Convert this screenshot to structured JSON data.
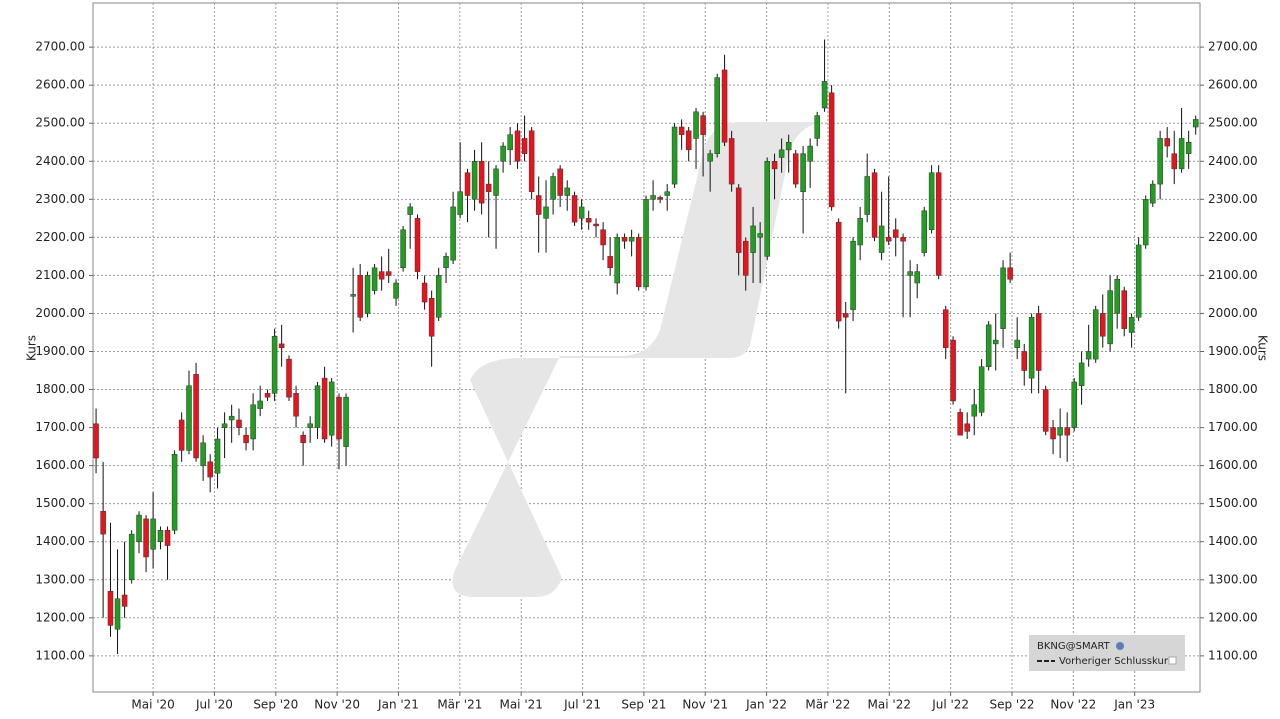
{
  "chart_data": {
    "type": "candlestick",
    "ylabel": "Kurs",
    "y2label": "Kurs",
    "legend": [
      "BKNG@SMART",
      "Vorheriger Schlusskurs"
    ],
    "up_color": "#1f9e1f",
    "down_color": "#e8131d",
    "grid": true,
    "xlim": [
      2.04,
      38.13
    ],
    "xticks": [
      {
        "value": 4,
        "label": "Mai '20"
      },
      {
        "value": 6,
        "label": "Jul '20"
      },
      {
        "value": 8,
        "label": "Sep '20"
      },
      {
        "value": 10,
        "label": "Nov '20"
      },
      {
        "value": 12,
        "label": "Jan '21"
      },
      {
        "value": 14,
        "label": "Mär '21"
      },
      {
        "value": 16,
        "label": "Mai '21"
      },
      {
        "value": 18,
        "label": "Jul '21"
      },
      {
        "value": 20,
        "label": "Sep '21"
      },
      {
        "value": 22,
        "label": "Nov '21"
      },
      {
        "value": 24,
        "label": "Jan '22"
      },
      {
        "value": 26,
        "label": "Mär '22"
      },
      {
        "value": 28,
        "label": "Mai '22"
      },
      {
        "value": 30,
        "label": "Jul '22"
      },
      {
        "value": 32,
        "label": "Sep '22"
      },
      {
        "value": 34,
        "label": "Nov '22"
      },
      {
        "value": 36,
        "label": "Jan '23"
      }
    ],
    "ylim": [
      1005,
      2816
    ],
    "yticks": [
      {
        "value": 1100,
        "label": "1100.00"
      },
      {
        "value": 1200,
        "label": "1200.00"
      },
      {
        "value": 1300,
        "label": "1300.00"
      },
      {
        "value": 1400,
        "label": "1400.00"
      },
      {
        "value": 1500,
        "label": "1500.00"
      },
      {
        "value": 1600,
        "label": "1600.00"
      },
      {
        "value": 1700,
        "label": "1700.00"
      },
      {
        "value": 1800,
        "label": "1800.00"
      },
      {
        "value": 1900,
        "label": "1900.00"
      },
      {
        "value": 2000,
        "label": "2000.00"
      },
      {
        "value": 2100,
        "label": "2100.00"
      },
      {
        "value": 2200,
        "label": "2200.00"
      },
      {
        "value": 2300,
        "label": "2300.00"
      },
      {
        "value": 2400,
        "label": "2400.00"
      },
      {
        "value": 2500,
        "label": "2500.00"
      },
      {
        "value": 2600,
        "label": "2600.00"
      },
      {
        "value": 2700,
        "label": "2700.00"
      }
    ],
    "x": [
      2.14,
      2.37,
      2.61,
      2.84,
      3.07,
      3.3,
      3.54,
      3.77,
      4.0,
      4.24,
      4.47,
      4.7,
      4.93,
      5.17,
      5.4,
      5.63,
      5.86,
      6.1,
      6.33,
      6.56,
      6.8,
      7.03,
      7.26,
      7.49,
      7.73,
      7.96,
      8.19,
      8.43,
      8.66,
      8.89,
      9.12,
      9.36,
      9.59,
      9.82,
      10.06,
      10.29,
      10.52,
      10.75,
      10.99,
      11.22,
      11.45,
      11.68,
      11.92,
      12.15,
      12.38,
      12.62,
      12.85,
      13.08,
      13.31,
      13.55,
      13.78,
      14.01,
      14.25,
      14.48,
      14.71,
      14.94,
      15.18,
      15.41,
      15.64,
      15.88,
      16.11,
      16.34,
      16.57,
      16.81,
      17.04,
      17.27,
      17.5,
      17.74,
      17.97,
      18.2,
      18.44,
      18.67,
      18.9,
      19.13,
      19.37,
      19.6,
      19.83,
      20.07,
      20.3,
      20.53,
      20.76,
      21.0,
      21.23,
      21.46,
      21.7,
      21.93,
      22.16,
      22.39,
      22.63,
      22.86,
      23.09,
      23.32,
      23.56,
      23.79,
      24.02,
      24.26,
      24.49,
      24.72,
      24.95,
      25.19,
      25.42,
      25.65,
      25.89,
      26.12,
      26.35,
      26.58,
      26.82,
      27.05,
      27.28,
      27.52,
      27.75,
      27.98,
      28.21,
      28.45,
      28.68,
      28.91,
      29.14,
      29.38,
      29.61,
      29.84,
      30.08,
      30.31,
      30.54,
      30.77,
      31.01,
      31.24,
      31.47,
      31.71,
      31.94,
      32.17,
      32.4,
      32.64,
      32.87,
      33.1,
      33.34,
      33.57,
      33.8,
      34.03,
      34.27,
      34.5,
      34.73,
      34.96,
      35.2,
      35.43,
      35.66,
      35.9,
      36.13,
      36.36,
      36.59,
      36.83,
      37.06,
      37.29,
      37.53,
      37.76,
      37.99
    ],
    "open": [
      1710,
      1480,
      1270,
      1170,
      1260,
      1300,
      1400,
      1460,
      1380,
      1400,
      1430,
      1430,
      1720,
      1640,
      1840,
      1600,
      1610,
      1580,
      1700,
      1720,
      1720,
      1680,
      1670,
      1750,
      1790,
      1790,
      1920,
      1880,
      1790,
      1680,
      1700,
      1700,
      1830,
      1680,
      1780,
      1650,
      2045,
      2100,
      2000,
      2060,
      2110,
      2110,
      2040,
      2120,
      2260,
      2250,
      2080,
      2040,
      1990,
      2120,
      2140,
      2260,
      2370,
      2300,
      2400,
      2340,
      2310,
      2400,
      2430,
      2480,
      2460,
      2480,
      2310,
      2250,
      2300,
      2380,
      2310,
      2310,
      2250,
      2250,
      2235,
      2220,
      2150,
      2080,
      2200,
      2190,
      2200,
      2070,
      2300,
      2305,
      2310,
      2340,
      2490,
      2480,
      2460,
      2520,
      2400,
      2420,
      2640,
      2460,
      2330,
      2190,
      2160,
      2200,
      2150,
      2400,
      2410,
      2430,
      2420,
      2320,
      2400,
      2460,
      2540,
      2580,
      2240,
      2000,
      2010,
      2180,
      2260,
      2370,
      2160,
      2200,
      2220,
      2200,
      2100,
      2080,
      2160,
      2220,
      2370,
      2010,
      1930,
      1740,
      1710,
      1730,
      1740,
      1860,
      1920,
      1960,
      2120,
      1910,
      1900,
      1830,
      2000,
      1800,
      1700,
      1680,
      1700,
      1700,
      1810,
      1880,
      1880,
      2000,
      1920,
      2000,
      2060,
      1950,
      1990,
      2180,
      2290,
      2340,
      2460,
      2420,
      2380,
      2420,
      2490
    ],
    "high": [
      1750,
      1610,
      1450,
      1380,
      1400,
      1430,
      1480,
      1470,
      1530,
      1440,
      1440,
      1640,
      1740,
      1850,
      1870,
      1680,
      1630,
      1700,
      1740,
      1760,
      1750,
      1700,
      1790,
      1810,
      1800,
      1960,
      1970,
      1890,
      1810,
      1690,
      1730,
      1820,
      1860,
      1830,
      1790,
      1790,
      2120,
      2130,
      2110,
      2130,
      2150,
      2170,
      2090,
      2230,
      2290,
      2260,
      2100,
      2060,
      2120,
      2160,
      2320,
      2450,
      2380,
      2430,
      2450,
      2400,
      2390,
      2450,
      2490,
      2500,
      2520,
      2490,
      2360,
      2350,
      2370,
      2390,
      2350,
      2320,
      2300,
      2270,
      2250,
      2240,
      2200,
      2210,
      2210,
      2220,
      2210,
      2310,
      2350,
      2310,
      2340,
      2500,
      2510,
      2490,
      2540,
      2530,
      2430,
      2630,
      2680,
      2480,
      2340,
      2200,
      2280,
      2240,
      2410,
      2420,
      2460,
      2470,
      2430,
      2440,
      2460,
      2530,
      2720,
      2600,
      2250,
      2030,
      2200,
      2280,
      2420,
      2380,
      2320,
      2360,
      2250,
      2210,
      2140,
      2130,
      2280,
      2390,
      2390,
      2020,
      1940,
      1750,
      1740,
      1800,
      1880,
      1980,
      2000,
      2140,
      2160,
      1990,
      1920,
      2000,
      2020,
      1810,
      1720,
      1750,
      1740,
      1830,
      1900,
      1970,
      2020,
      2050,
      2100,
      2100,
      2070,
      2000,
      2200,
      2310,
      2350,
      2480,
      2490,
      2480,
      2540,
      2480,
      2520
    ],
    "low": [
      1580,
      1200,
      1150,
      1105,
      1200,
      1290,
      1370,
      1320,
      1330,
      1380,
      1300,
      1420,
      1610,
      1630,
      1610,
      1560,
      1530,
      1540,
      1620,
      1660,
      1680,
      1640,
      1640,
      1730,
      1770,
      1770,
      1860,
      1770,
      1700,
      1600,
      1660,
      1670,
      1660,
      1650,
      1590,
      1600,
      1950,
      1980,
      1990,
      2050,
      2060,
      2080,
      2020,
      2110,
      2170,
      2090,
      2010,
      1860,
      1980,
      2080,
      2130,
      2250,
      2240,
      2270,
      2260,
      2200,
      2170,
      2370,
      2390,
      2380,
      2400,
      2300,
      2160,
      2160,
      2260,
      2280,
      2270,
      2230,
      2220,
      2220,
      2200,
      2140,
      2100,
      2050,
      2170,
      2150,
      2060,
      2060,
      2270,
      2290,
      2270,
      2330,
      2430,
      2400,
      2380,
      2360,
      2320,
      2410,
      2440,
      2320,
      2100,
      2060,
      2080,
      2080,
      2140,
      2300,
      2370,
      2370,
      2330,
      2210,
      2330,
      2440,
      2530,
      2270,
      1960,
      1790,
      1980,
      2140,
      2240,
      2190,
      2140,
      2180,
      2150,
      1990,
      1990,
      2040,
      2150,
      2210,
      2090,
      1880,
      1760,
      1680,
      1670,
      1680,
      1730,
      1850,
      1850,
      1910,
      2080,
      1880,
      1810,
      1790,
      1790,
      1680,
      1630,
      1620,
      1610,
      1690,
      1760,
      1860,
      1870,
      1910,
      1900,
      1960,
      1940,
      1910,
      1980,
      2170,
      2280,
      2300,
      2410,
      2340,
      2370,
      2380,
      2470
    ],
    "close": [
      1620,
      1420,
      1180,
      1250,
      1230,
      1420,
      1470,
      1360,
      1460,
      1430,
      1390,
      1630,
      1640,
      1810,
      1620,
      1660,
      1570,
      1670,
      1710,
      1730,
      1700,
      1660,
      1760,
      1770,
      1780,
      1940,
      1910,
      1780,
      1730,
      1660,
      1710,
      1810,
      1670,
      1820,
      1670,
      1780,
      2050,
      1990,
      2100,
      2120,
      2090,
      2100,
      2080,
      2220,
      2280,
      2110,
      2030,
      1940,
      2100,
      2150,
      2280,
      2320,
      2310,
      2400,
      2290,
      2320,
      2380,
      2440,
      2470,
      2400,
      2420,
      2320,
      2260,
      2280,
      2360,
      2310,
      2330,
      2240,
      2280,
      2240,
      2230,
      2180,
      2120,
      2200,
      2190,
      2200,
      2070,
      2300,
      2310,
      2300,
      2320,
      2490,
      2470,
      2430,
      2530,
      2470,
      2420,
      2620,
      2450,
      2340,
      2160,
      2100,
      2230,
      2210,
      2400,
      2380,
      2430,
      2450,
      2340,
      2420,
      2440,
      2520,
      2610,
      2280,
      1980,
      1990,
      2190,
      2250,
      2360,
      2200,
      2230,
      2190,
      2200,
      2190,
      2110,
      2110,
      2270,
      2370,
      2100,
      1910,
      1770,
      1680,
      1690,
      1760,
      1860,
      1970,
      1930,
      2120,
      2090,
      1930,
      1850,
      1990,
      1850,
      1690,
      1670,
      1700,
      1680,
      1820,
      1870,
      1900,
      2010,
      1940,
      2060,
      2090,
      1960,
      1990,
      2180,
      2300,
      2340,
      2460,
      2440,
      2380,
      2460,
      2450,
      2510
    ]
  }
}
